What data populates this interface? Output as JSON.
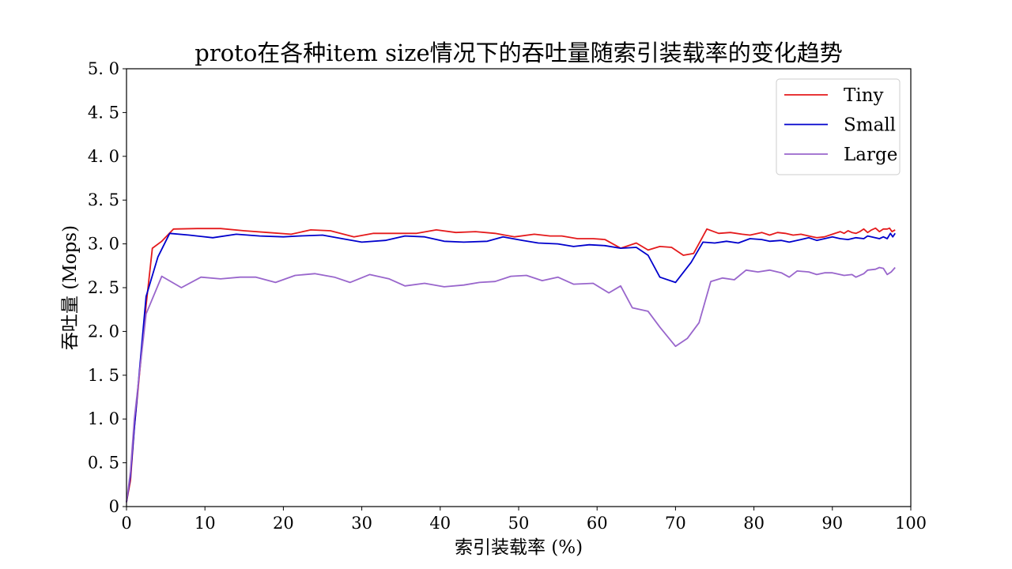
{
  "chart_data": {
    "type": "line",
    "title": "proto在各种item size情况下的吞吐量随索引装载率的变化趋势",
    "xlabel": "索引装载率 (%)",
    "ylabel": "吞吐量 (Mops)",
    "xlim": [
      0,
      100
    ],
    "ylim": [
      0,
      5.0
    ],
    "xticks": [
      "0",
      "10",
      "20",
      "30",
      "40",
      "50",
      "60",
      "70",
      "80",
      "90",
      "100"
    ],
    "yticks": [
      "0",
      "0. 5",
      "1. 0",
      "1. 5",
      "2. 0",
      "2. 5",
      "3. 0",
      "3. 5",
      "4. 0",
      "4. 5",
      "5. 0"
    ],
    "grid": false,
    "legend_position": "top-right",
    "series": [
      {
        "name": "Tiny",
        "color": "#e41a1c",
        "points": [
          [
            0,
            0.05
          ],
          [
            0.5,
            0.3
          ],
          [
            1,
            0.9
          ],
          [
            2.5,
            2.3
          ],
          [
            3.3,
            2.95
          ],
          [
            4.5,
            3.03
          ],
          [
            6,
            3.17
          ],
          [
            9,
            3.175
          ],
          [
            12,
            3.175
          ],
          [
            15,
            3.15
          ],
          [
            18,
            3.13
          ],
          [
            21,
            3.11
          ],
          [
            23.5,
            3.16
          ],
          [
            26,
            3.15
          ],
          [
            29,
            3.08
          ],
          [
            31.5,
            3.12
          ],
          [
            34,
            3.12
          ],
          [
            37,
            3.12
          ],
          [
            39.5,
            3.16
          ],
          [
            42,
            3.13
          ],
          [
            44.5,
            3.14
          ],
          [
            47,
            3.12
          ],
          [
            49.5,
            3.08
          ],
          [
            52,
            3.11
          ],
          [
            54,
            3.09
          ],
          [
            55.5,
            3.09
          ],
          [
            57.5,
            3.06
          ],
          [
            59.5,
            3.06
          ],
          [
            61,
            3.05
          ],
          [
            63,
            2.95
          ],
          [
            65,
            3.01
          ],
          [
            66.5,
            2.93
          ],
          [
            68,
            2.97
          ],
          [
            69.5,
            2.96
          ],
          [
            71,
            2.87
          ],
          [
            72.3,
            2.89
          ],
          [
            74,
            3.17
          ],
          [
            75.5,
            3.12
          ],
          [
            77,
            3.13
          ],
          [
            78.5,
            3.11
          ],
          [
            79.5,
            3.1
          ],
          [
            81,
            3.13
          ],
          [
            82,
            3.1
          ],
          [
            83,
            3.13
          ],
          [
            84,
            3.12
          ],
          [
            85,
            3.1
          ],
          [
            86,
            3.11
          ],
          [
            87,
            3.09
          ],
          [
            88,
            3.07
          ],
          [
            89,
            3.08
          ],
          [
            90,
            3.11
          ],
          [
            91,
            3.14
          ],
          [
            91.5,
            3.12
          ],
          [
            92,
            3.15
          ],
          [
            92.5,
            3.13
          ],
          [
            93,
            3.12
          ],
          [
            93.5,
            3.14
          ],
          [
            94,
            3.17
          ],
          [
            94.5,
            3.13
          ],
          [
            95,
            3.16
          ],
          [
            95.5,
            3.18
          ],
          [
            96,
            3.14
          ],
          [
            96.5,
            3.17
          ],
          [
            97,
            3.17
          ],
          [
            97.3,
            3.18
          ],
          [
            97.6,
            3.14
          ],
          [
            98,
            3.16
          ]
        ]
      },
      {
        "name": "Small",
        "color": "#0000cc",
        "points": [
          [
            0,
            0.05
          ],
          [
            0.5,
            0.35
          ],
          [
            1,
            0.9
          ],
          [
            2.5,
            2.4
          ],
          [
            4,
            2.85
          ],
          [
            5.5,
            3.12
          ],
          [
            8,
            3.1
          ],
          [
            11,
            3.07
          ],
          [
            14,
            3.11
          ],
          [
            17,
            3.09
          ],
          [
            20,
            3.08
          ],
          [
            22,
            3.09
          ],
          [
            25,
            3.1
          ],
          [
            27.5,
            3.06
          ],
          [
            30,
            3.02
          ],
          [
            33,
            3.04
          ],
          [
            35.5,
            3.09
          ],
          [
            38,
            3.08
          ],
          [
            40.5,
            3.03
          ],
          [
            43,
            3.02
          ],
          [
            46,
            3.03
          ],
          [
            48,
            3.08
          ],
          [
            50.5,
            3.04
          ],
          [
            52.5,
            3.01
          ],
          [
            55,
            3.0
          ],
          [
            57,
            2.97
          ],
          [
            59,
            2.99
          ],
          [
            61,
            2.98
          ],
          [
            63,
            2.95
          ],
          [
            65,
            2.96
          ],
          [
            66.5,
            2.87
          ],
          [
            68,
            2.62
          ],
          [
            70,
            2.56
          ],
          [
            72,
            2.79
          ],
          [
            73.5,
            3.02
          ],
          [
            75,
            3.01
          ],
          [
            76.5,
            3.03
          ],
          [
            78,
            3.01
          ],
          [
            79.5,
            3.06
          ],
          [
            81,
            3.05
          ],
          [
            82,
            3.03
          ],
          [
            83.5,
            3.04
          ],
          [
            84.5,
            3.02
          ],
          [
            86,
            3.05
          ],
          [
            87,
            3.07
          ],
          [
            88,
            3.04
          ],
          [
            89,
            3.06
          ],
          [
            90,
            3.08
          ],
          [
            91,
            3.06
          ],
          [
            92,
            3.05
          ],
          [
            93,
            3.07
          ],
          [
            94,
            3.06
          ],
          [
            94.5,
            3.09
          ],
          [
            95,
            3.08
          ],
          [
            96,
            3.06
          ],
          [
            96.5,
            3.08
          ],
          [
            97,
            3.06
          ],
          [
            97.4,
            3.12
          ],
          [
            97.7,
            3.08
          ],
          [
            98,
            3.12
          ]
        ]
      },
      {
        "name": "Large",
        "color": "#9966cc",
        "points": [
          [
            0,
            0.05
          ],
          [
            0.5,
            0.4
          ],
          [
            1,
            1.0
          ],
          [
            2.5,
            2.2
          ],
          [
            4.5,
            2.63
          ],
          [
            7,
            2.5
          ],
          [
            9.5,
            2.62
          ],
          [
            12,
            2.6
          ],
          [
            14.5,
            2.62
          ],
          [
            16.5,
            2.62
          ],
          [
            19,
            2.56
          ],
          [
            21.5,
            2.64
          ],
          [
            24,
            2.66
          ],
          [
            26.5,
            2.62
          ],
          [
            28.5,
            2.56
          ],
          [
            31,
            2.65
          ],
          [
            33.5,
            2.6
          ],
          [
            35.5,
            2.52
          ],
          [
            38,
            2.55
          ],
          [
            40.5,
            2.51
          ],
          [
            43,
            2.53
          ],
          [
            45,
            2.56
          ],
          [
            47,
            2.57
          ],
          [
            49,
            2.63
          ],
          [
            51,
            2.64
          ],
          [
            53,
            2.58
          ],
          [
            55,
            2.62
          ],
          [
            57,
            2.54
          ],
          [
            59.5,
            2.55
          ],
          [
            61.5,
            2.44
          ],
          [
            63,
            2.52
          ],
          [
            64.5,
            2.27
          ],
          [
            66.5,
            2.23
          ],
          [
            68,
            2.05
          ],
          [
            70,
            1.83
          ],
          [
            71.5,
            1.92
          ],
          [
            73,
            2.1
          ],
          [
            74.5,
            2.57
          ],
          [
            76,
            2.61
          ],
          [
            77.5,
            2.59
          ],
          [
            79,
            2.7
          ],
          [
            80.5,
            2.68
          ],
          [
            82,
            2.7
          ],
          [
            83.5,
            2.67
          ],
          [
            84.5,
            2.62
          ],
          [
            85.5,
            2.69
          ],
          [
            87,
            2.68
          ],
          [
            88,
            2.65
          ],
          [
            89,
            2.67
          ],
          [
            90,
            2.67
          ],
          [
            91.5,
            2.64
          ],
          [
            92.5,
            2.65
          ],
          [
            93,
            2.62
          ],
          [
            94,
            2.66
          ],
          [
            94.5,
            2.7
          ],
          [
            95.5,
            2.71
          ],
          [
            96,
            2.73
          ],
          [
            96.5,
            2.72
          ],
          [
            97,
            2.65
          ],
          [
            97.5,
            2.68
          ],
          [
            98,
            2.73
          ]
        ]
      }
    ]
  }
}
